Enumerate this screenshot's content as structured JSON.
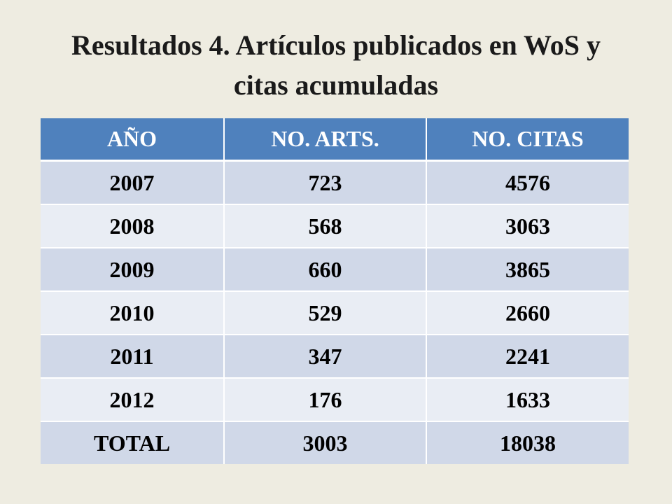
{
  "slide": {
    "title": "Resultados 4. Artículos publicados en WoS y citas acumuladas"
  },
  "table": {
    "headers": [
      "AÑO",
      "NO. ARTS.",
      "NO. CITAS"
    ],
    "rows": [
      [
        "2007",
        "723",
        "4576"
      ],
      [
        "2008",
        "568",
        "3063"
      ],
      [
        "2009",
        "660",
        "3865"
      ],
      [
        "2010",
        "529",
        "2660"
      ],
      [
        "2011",
        "347",
        "2241"
      ],
      [
        "2012",
        "176",
        "1633"
      ],
      [
        "TOTAL",
        "3003",
        "18038"
      ]
    ]
  },
  "colors": {
    "background": "#eeece1",
    "header_fill": "#4f81bd",
    "row_band_dark": "#d0d8e8",
    "row_band_light": "#e9edf4",
    "header_text": "#ffffff",
    "body_text": "#000000"
  }
}
